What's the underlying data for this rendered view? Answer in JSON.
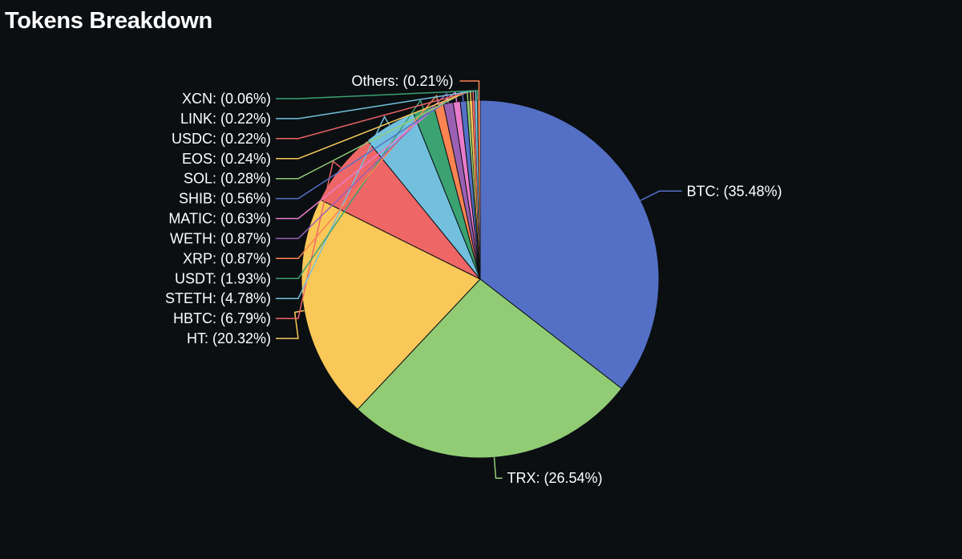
{
  "page": {
    "title": "Tokens Breakdown"
  },
  "chart_data": {
    "type": "pie",
    "title": "Tokens Breakdown",
    "unit": "%",
    "start_angle_deg": 0,
    "direction": "clockwise",
    "slices": [
      {
        "name": "BTC",
        "value": 35.48,
        "label": "BTC: (35.48%)",
        "color": "#5470c6",
        "label_side": "right"
      },
      {
        "name": "TRX",
        "value": 26.54,
        "label": "TRX: (26.54%)",
        "color": "#91cc75",
        "label_side": "right"
      },
      {
        "name": "HT",
        "value": 20.32,
        "label": "HT: (20.32%)",
        "color": "#fac858",
        "label_side": "left"
      },
      {
        "name": "HBTC",
        "value": 6.79,
        "label": "HBTC: (6.79%)",
        "color": "#ee6666",
        "label_side": "left"
      },
      {
        "name": "STETH",
        "value": 4.78,
        "label": "STETH: (4.78%)",
        "color": "#73c0de",
        "label_side": "left"
      },
      {
        "name": "USDT",
        "value": 1.93,
        "label": "USDT: (1.93%)",
        "color": "#3ba272",
        "label_side": "left"
      },
      {
        "name": "XRP",
        "value": 0.87,
        "label": "XRP: (0.87%)",
        "color": "#fc8452",
        "label_side": "left"
      },
      {
        "name": "WETH",
        "value": 0.87,
        "label": "WETH: (0.87%)",
        "color": "#9a60b4",
        "label_side": "left"
      },
      {
        "name": "MATIC",
        "value": 0.63,
        "label": "MATIC: (0.63%)",
        "color": "#ea7ccc",
        "label_side": "left"
      },
      {
        "name": "SHIB",
        "value": 0.56,
        "label": "SHIB: (0.56%)",
        "color": "#5470c6",
        "label_side": "left"
      },
      {
        "name": "SOL",
        "value": 0.28,
        "label": "SOL: (0.28%)",
        "color": "#91cc75",
        "label_side": "left"
      },
      {
        "name": "EOS",
        "value": 0.24,
        "label": "EOS: (0.24%)",
        "color": "#fac858",
        "label_side": "left"
      },
      {
        "name": "USDC",
        "value": 0.22,
        "label": "USDC: (0.22%)",
        "color": "#ee6666",
        "label_side": "left"
      },
      {
        "name": "LINK",
        "value": 0.22,
        "label": "LINK: (0.22%)",
        "color": "#73c0de",
        "label_side": "left"
      },
      {
        "name": "XCN",
        "value": 0.06,
        "label": "XCN: (0.06%)",
        "color": "#3ba272",
        "label_side": "left"
      },
      {
        "name": "Others",
        "value": 0.21,
        "label": "Others: (0.21%)",
        "color": "#fc8452",
        "label_side": "top"
      }
    ]
  }
}
